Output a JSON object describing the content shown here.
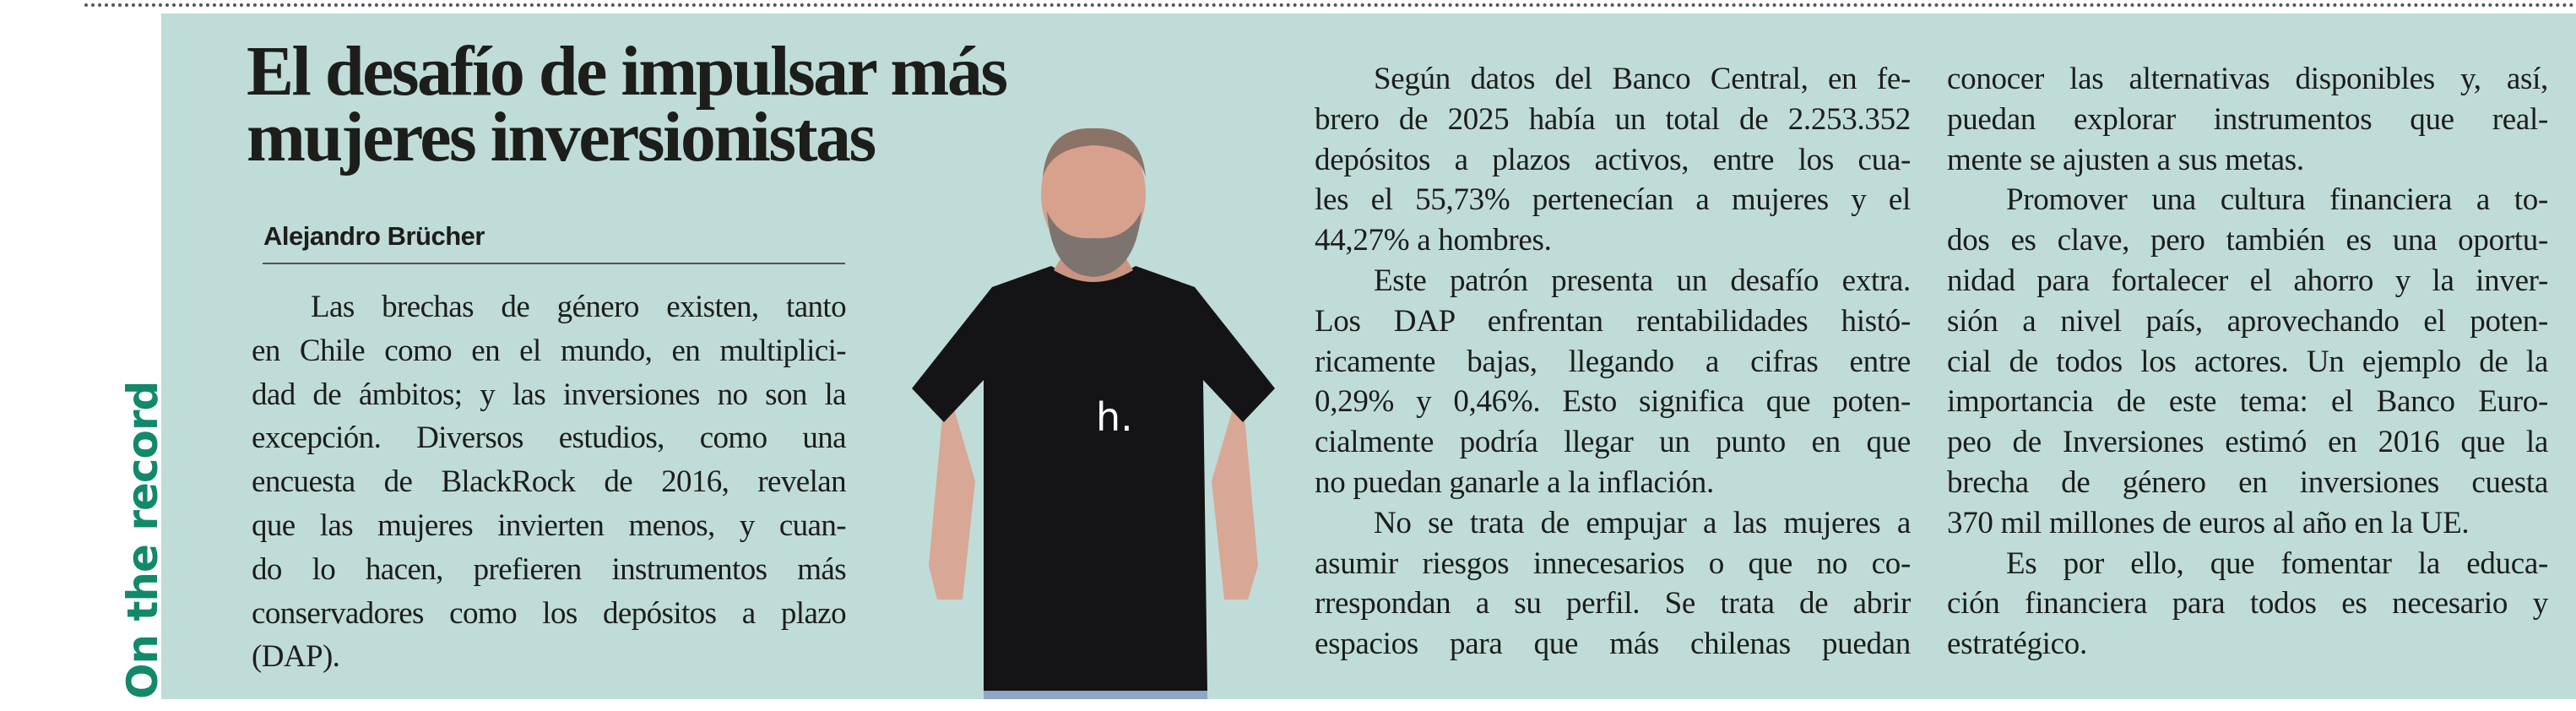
{
  "section_label": "On the record",
  "article": {
    "title_lines": [
      "El desafío de impulsar más",
      "mujeres inversionistas"
    ],
    "author": "Alejandro Brücher",
    "photo": {
      "description_icon": "author-portrait",
      "shirt_logo": "h."
    },
    "columns": [
      {
        "lines": [
          {
            "t": "Las brechas de género existen, tanto",
            "ind": true
          },
          {
            "t": "en Chile como en el mundo, en multiplici-"
          },
          {
            "t": "dad de ámbitos; y las inversiones no son la"
          },
          {
            "t": "excepción. Diversos estudios, como una"
          },
          {
            "t": "encuesta de BlackRock de 2016, revelan"
          },
          {
            "t": "que las mujeres invierten menos, y cuan-"
          },
          {
            "t": "do lo hacen, prefieren instrumentos más"
          },
          {
            "t": "conservadores como los depósitos a plazo"
          },
          {
            "t": "(DAP).",
            "last": true
          }
        ]
      },
      {
        "lines": [
          {
            "t": "Según datos del Banco Central, en fe-",
            "ind": true
          },
          {
            "t": "brero de 2025 había un total de 2.253.352"
          },
          {
            "t": "depósitos a plazos activos, entre los cua-"
          },
          {
            "t": "les el 55,73% pertenecían a mujeres y el"
          },
          {
            "t": "44,27% a hombres.",
            "last": true
          },
          {
            "t": "Este patrón presenta un desafío extra.",
            "ind": true
          },
          {
            "t": "Los DAP enfrentan rentabilidades histó-"
          },
          {
            "t": "ricamente bajas, llegando a cifras entre"
          },
          {
            "t": "0,29% y 0,46%. Esto significa que poten-"
          },
          {
            "t": "cialmente podría llegar un punto en que"
          },
          {
            "t": "no puedan ganarle a la inflación.",
            "last": true
          },
          {
            "t": "No se trata de empujar a las mujeres a",
            "ind": true
          },
          {
            "t": "asumir riesgos innecesarios o que no co-"
          },
          {
            "t": "rrespondan a su perfil. Se trata de abrir"
          },
          {
            "t": "espacios para que más chilenas puedan"
          }
        ]
      },
      {
        "lines": [
          {
            "t": "conocer las alternativas disponibles y, así,"
          },
          {
            "t": "puedan explorar instrumentos que real-"
          },
          {
            "t": "mente se ajusten a sus metas.",
            "last": true
          },
          {
            "t": "Promover una cultura financiera a to-",
            "ind": true
          },
          {
            "t": "dos es clave, pero también es una oportu-"
          },
          {
            "t": "nidad para fortalecer el ahorro y la inver-"
          },
          {
            "t": "sión a nivel país, aprovechando el poten-"
          },
          {
            "t": "cial de todos los actores. Un ejemplo de la"
          },
          {
            "t": "importancia de este tema: el Banco Euro-"
          },
          {
            "t": "peo de Inversiones estimó en 2016 que la"
          },
          {
            "t": "brecha de género en inversiones cuesta"
          },
          {
            "t": "370 mil millones de euros al año en la UE.",
            "last": true
          },
          {
            "t": "Es por ello, que fomentar la educa-",
            "ind": true
          },
          {
            "t": "ción financiera para todos es necesario y"
          },
          {
            "t": "estratégico.",
            "last": true
          }
        ]
      }
    ]
  },
  "colors": {
    "panel": "#bfdcd8",
    "section_label": "#12896b",
    "text": "#1d1d1b"
  }
}
